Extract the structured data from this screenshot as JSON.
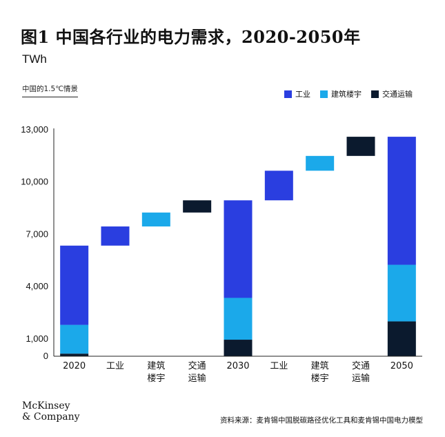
{
  "title": "图1 中国各行业的电力需求，2020-2050年",
  "unit": "TWh",
  "scenario": "中国的1.5℃情景",
  "legend": [
    {
      "label": "工业",
      "color": "#2a3ee0"
    },
    {
      "label": "建筑楼宇",
      "color": "#1ba9ea"
    },
    {
      "label": "交通运输",
      "color": "#0b1a2e"
    }
  ],
  "chart_data": {
    "type": "bar",
    "subtype": "waterfall",
    "categories": [
      [
        "2020"
      ],
      [
        "工业"
      ],
      [
        "建筑",
        "楼宇"
      ],
      [
        "交通",
        "运输"
      ],
      [
        "2030"
      ],
      [
        "工业"
      ],
      [
        "建筑",
        "楼宇"
      ],
      [
        "交通",
        "运输"
      ],
      [
        "2050"
      ]
    ],
    "ylim": [
      0,
      13000
    ],
    "yticks": [
      0,
      1000,
      4000,
      7000,
      10000,
      13000
    ],
    "ytick_labels": [
      "0",
      "1,000",
      "4,000",
      "7,000",
      "10,000",
      "13,000"
    ],
    "bars": [
      {
        "kind": "stack",
        "segments": [
          {
            "series": "交通运输",
            "value": 150
          },
          {
            "series": "建筑楼宇",
            "value": 1650
          },
          {
            "series": "工业",
            "value": 4550
          }
        ]
      },
      {
        "kind": "delta",
        "series": "工业",
        "from": 6350,
        "to": 7450
      },
      {
        "kind": "delta",
        "series": "建筑楼宇",
        "from": 7450,
        "to": 8250
      },
      {
        "kind": "delta",
        "series": "交通运输",
        "from": 8250,
        "to": 8950
      },
      {
        "kind": "stack",
        "segments": [
          {
            "series": "交通运输",
            "value": 950
          },
          {
            "series": "建筑楼宇",
            "value": 2400
          },
          {
            "series": "工业",
            "value": 5600
          }
        ]
      },
      {
        "kind": "delta",
        "series": "工业",
        "from": 8950,
        "to": 10650
      },
      {
        "kind": "delta",
        "series": "建筑楼宇",
        "from": 10650,
        "to": 11500
      },
      {
        "kind": "delta",
        "series": "交通运输",
        "from": 11500,
        "to": 12600
      },
      {
        "kind": "stack",
        "segments": [
          {
            "series": "交通运输",
            "value": 2000
          },
          {
            "series": "建筑楼宇",
            "value": 3250
          },
          {
            "series": "工业",
            "value": 7350
          }
        ]
      }
    ]
  },
  "logo": [
    "McKinsey",
    "& Company"
  ],
  "source": "资料来源：麦肯锡中国脱碳路径优化工具和麦肯锡中国电力模型"
}
